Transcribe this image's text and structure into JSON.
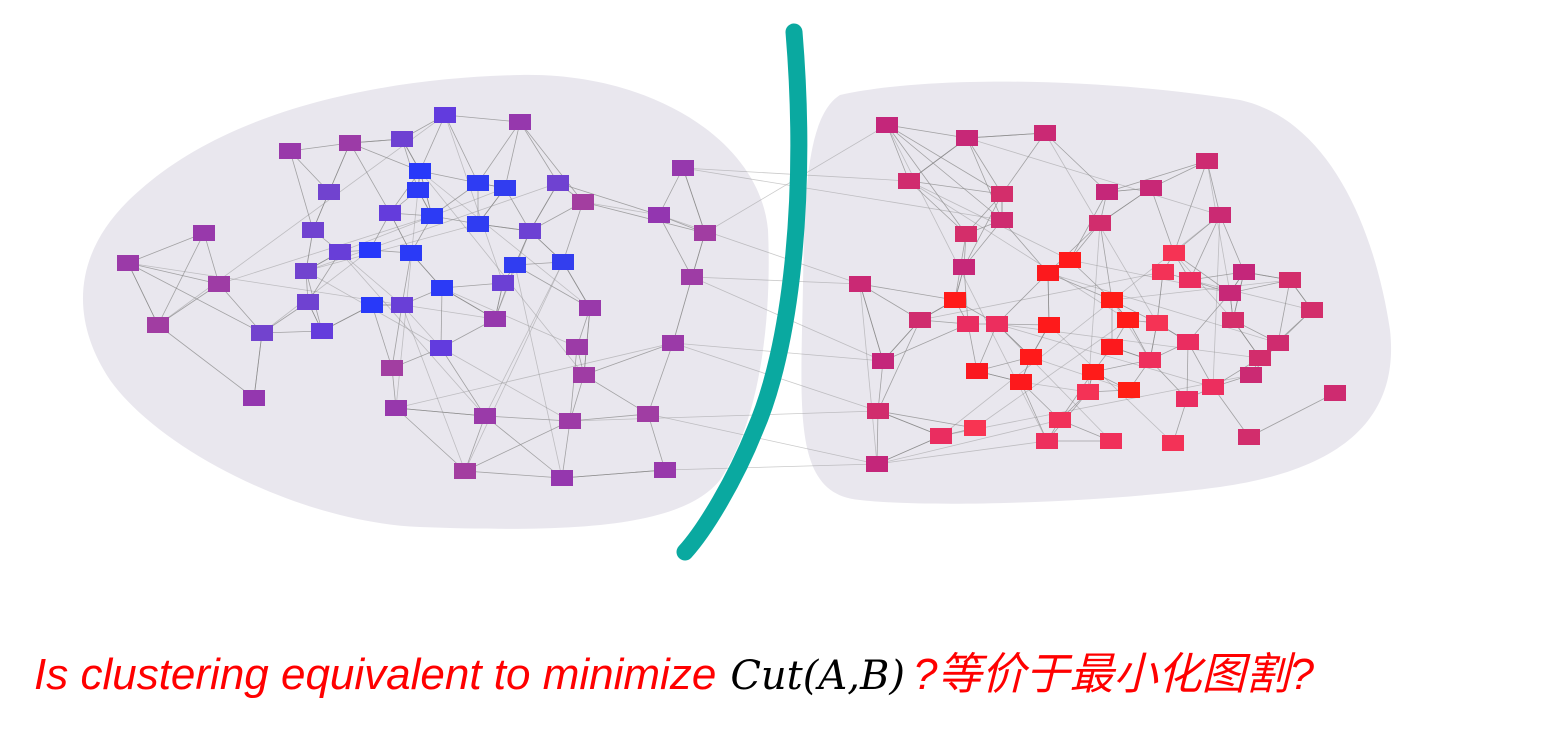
{
  "caption": {
    "question": "Is clustering equivalent to minimize",
    "formula": "Cut(A,B)",
    "chinese": "?等价于最小化图割?"
  },
  "colors": {
    "cluster_fill": "#e9e7ee",
    "cut_line": "#0aa9a0",
    "edge": "#8a8a8a",
    "caption_text": "#ff0000",
    "formula_text": "#000000",
    "left_core": "#2f3cf2",
    "left_mid": "#6a3fd6",
    "left_outer": "#9b3aa8",
    "right_core": "#ff1a1a",
    "right_mid": "#f0305a",
    "right_outer": "#cc2a72"
  },
  "graph": {
    "clusters": [
      "A",
      "B"
    ],
    "left_node_count": 62,
    "right_node_count": 59
  }
}
